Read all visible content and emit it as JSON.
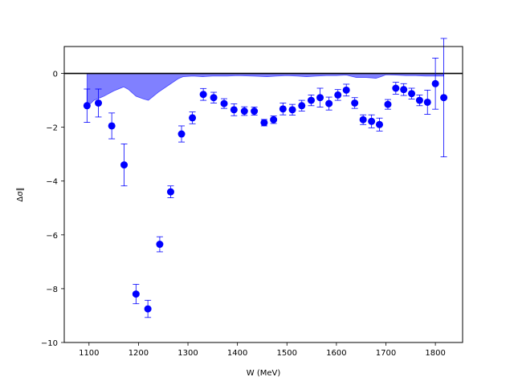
{
  "chart_data": {
    "type": "scatter",
    "xlabel": "W (MeV)",
    "ylabel": "Δσ∥",
    "xlim": [
      1050,
      1855
    ],
    "ylim": [
      -10,
      1
    ],
    "xticks": [
      1100,
      1200,
      1300,
      1400,
      1500,
      1600,
      1700,
      1800
    ],
    "yticks": [
      -10,
      -8,
      -6,
      -4,
      -2,
      0
    ],
    "grid": false,
    "reference_line_y": 0,
    "colors": {
      "points": "#0000ff",
      "band_fill": "#8080ff",
      "band_edge": "#0000ff",
      "reference_line": "#000000"
    },
    "series": [
      {
        "type": "scatter_errorbar",
        "x": [
          1096,
          1119,
          1146,
          1171,
          1195,
          1219,
          1243,
          1265,
          1287,
          1309,
          1331,
          1352,
          1373,
          1393,
          1414,
          1434,
          1454,
          1473,
          1492,
          1511,
          1530,
          1549,
          1567,
          1585,
          1603,
          1620,
          1637,
          1654,
          1671,
          1687,
          1704,
          1720,
          1736,
          1752,
          1768,
          1784,
          1800,
          1817
        ],
        "y": [
          -1.2,
          -1.1,
          -1.95,
          -3.4,
          -8.2,
          -8.75,
          -6.35,
          -4.4,
          -2.25,
          -1.65,
          -0.78,
          -0.9,
          -1.12,
          -1.35,
          -1.4,
          -1.4,
          -1.83,
          -1.72,
          -1.32,
          -1.35,
          -1.2,
          -1.0,
          -0.9,
          -1.12,
          -0.8,
          -0.62,
          -1.1,
          -1.72,
          -1.78,
          -1.9,
          -1.15,
          -0.55,
          -0.6,
          -0.75,
          -1.0,
          -1.07,
          -0.38,
          -0.9
        ],
        "yerr": [
          0.62,
          0.52,
          0.48,
          0.78,
          0.36,
          0.32,
          0.28,
          0.22,
          0.3,
          0.22,
          0.22,
          0.2,
          0.18,
          0.22,
          0.16,
          0.15,
          0.12,
          0.14,
          0.22,
          0.2,
          0.2,
          0.2,
          0.35,
          0.24,
          0.2,
          0.22,
          0.2,
          0.18,
          0.24,
          0.24,
          0.18,
          0.22,
          0.22,
          0.2,
          0.2,
          0.45,
          0.95,
          2.2
        ]
      },
      {
        "type": "area",
        "x": [
          1096,
          1110,
          1130,
          1150,
          1170,
          1180,
          1195,
          1210,
          1220,
          1240,
          1260,
          1280,
          1290,
          1310,
          1330,
          1350,
          1380,
          1400,
          1430,
          1460,
          1480,
          1500,
          1520,
          1540,
          1560,
          1580,
          1600,
          1620,
          1640,
          1660,
          1680,
          1690,
          1700,
          1720,
          1740,
          1760,
          1780,
          1800,
          1817
        ],
        "y": [
          -1.25,
          -1.0,
          -0.85,
          -0.65,
          -0.5,
          -0.6,
          -0.85,
          -0.95,
          -1.0,
          -0.7,
          -0.45,
          -0.2,
          -0.12,
          -0.1,
          -0.12,
          -0.1,
          -0.1,
          -0.08,
          -0.1,
          -0.12,
          -0.1,
          -0.08,
          -0.1,
          -0.12,
          -0.1,
          -0.08,
          -0.08,
          -0.06,
          -0.15,
          -0.15,
          -0.18,
          -0.12,
          -0.05,
          -0.06,
          -0.08,
          -0.08,
          -0.1,
          -0.1,
          -0.1
        ]
      }
    ]
  }
}
